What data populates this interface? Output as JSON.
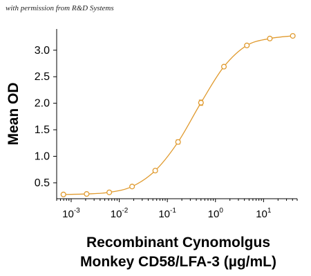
{
  "watermark": "with permission from R&D Systems",
  "chart_data": {
    "type": "scatter",
    "ylabel": "Mean OD",
    "xlabel_lines": [
      "Recombinant Cynomolgus",
      "Monkey CD58/LFA-3 (µg/mL)"
    ],
    "x_scale": "log",
    "xlim": [
      0.0005,
      50
    ],
    "ylim": [
      0.2,
      3.4
    ],
    "x_ticks": [
      {
        "value": 0.001,
        "base": "10",
        "exp": "-3"
      },
      {
        "value": 0.01,
        "base": "10",
        "exp": "-2"
      },
      {
        "value": 0.1,
        "base": "10",
        "exp": "-1"
      },
      {
        "value": 1,
        "base": "10",
        "exp": "0"
      },
      {
        "value": 10,
        "base": "10",
        "exp": "1"
      }
    ],
    "y_ticks": [
      {
        "value": 0.5,
        "label": "0.5"
      },
      {
        "value": 1.0,
        "label": "1.0"
      },
      {
        "value": 1.5,
        "label": "1.5"
      },
      {
        "value": 2.0,
        "label": "2.0"
      },
      {
        "value": 2.5,
        "label": "2.5"
      },
      {
        "value": 3.0,
        "label": "3.0"
      }
    ],
    "series": [
      {
        "color": "#E09A2E",
        "x": [
          0.00069,
          0.0021,
          0.0062,
          0.0185,
          0.056,
          0.167,
          0.5,
          1.5,
          4.5,
          13.5,
          40.5
        ],
        "y": [
          0.28,
          0.29,
          0.32,
          0.43,
          0.73,
          1.27,
          2.01,
          2.69,
          3.09,
          3.22,
          3.27
        ],
        "err": [
          0.01,
          0.01,
          0.01,
          0.02,
          0.02,
          0.04,
          0.05,
          0.02,
          0.02,
          0.02,
          0.02
        ]
      }
    ],
    "grid": false
  }
}
